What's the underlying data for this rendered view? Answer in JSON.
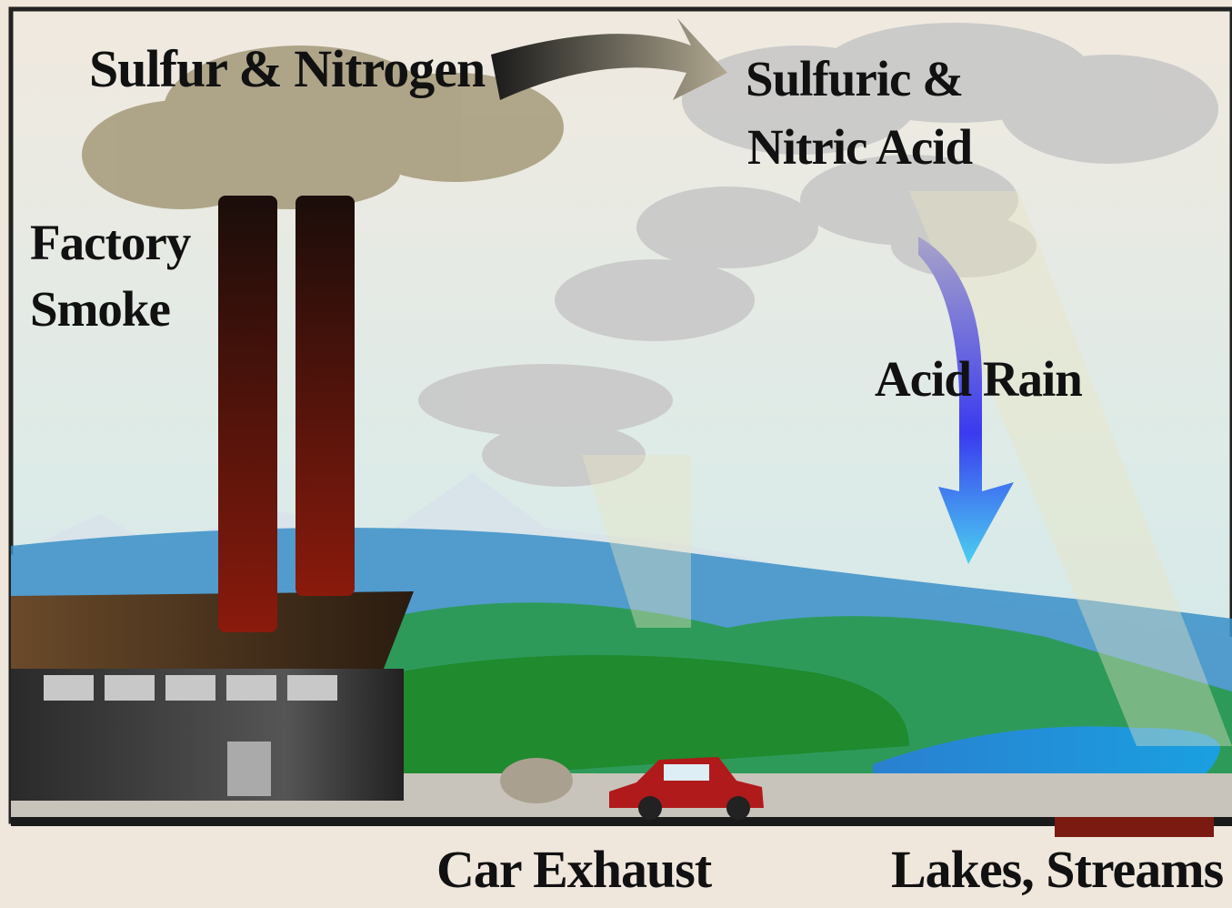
{
  "labels": {
    "emissions": "Sulfur & Nitrogen",
    "acid": [
      "Sulfuric &",
      "Nitric Acid"
    ],
    "source": [
      "Factory",
      "Smoke"
    ],
    "rain": "Acid Rain",
    "car": "Car Exhaust",
    "lakes": "Lakes, Streams"
  }
}
